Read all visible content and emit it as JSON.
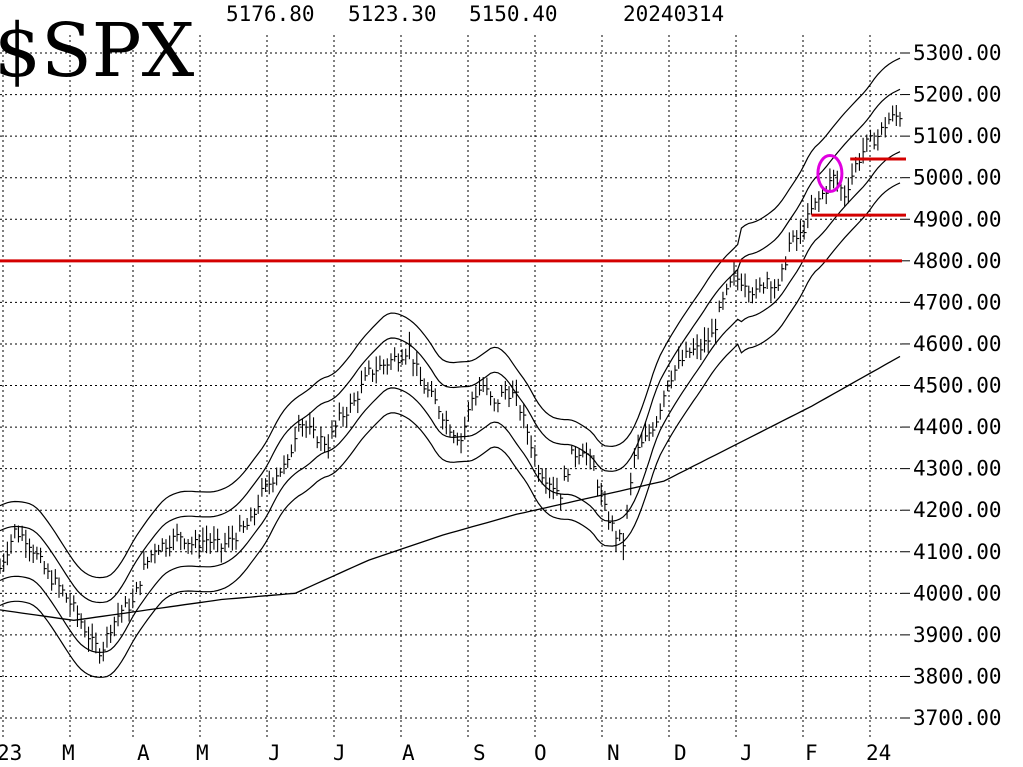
{
  "header": {
    "ticker": "$SPX",
    "high": "5176.80",
    "low": "5123.30",
    "close": "5150.40",
    "date": "20240314"
  },
  "chart_data": {
    "type": "ohlc-bar",
    "title": "$SPX",
    "ylim": [
      3650,
      5350
    ],
    "y_ticks": [
      "5300.00",
      "5200.00",
      "5100.00",
      "5000.00",
      "4900.00",
      "4800.00",
      "4700.00",
      "4600.00",
      "4500.00",
      "4400.00",
      "4300.00",
      "4200.00",
      "4100.00",
      "4000.00",
      "3900.00",
      "3800.00",
      "3700.00"
    ],
    "x_ticks": [
      "23",
      "M",
      "A",
      "M",
      "J",
      "J",
      "A",
      "S",
      "O",
      "N",
      "D",
      "J",
      "F",
      "24"
    ],
    "close_series": [
      {
        "d": 0,
        "v": 4060
      },
      {
        "d": 8,
        "v": 4150
      },
      {
        "d": 15,
        "v": 4130
      },
      {
        "d": 25,
        "v": 4050
      },
      {
        "d": 33,
        "v": 4010
      },
      {
        "d": 42,
        "v": 3950
      },
      {
        "d": 50,
        "v": 3880
      },
      {
        "d": 55,
        "v": 3860
      },
      {
        "d": 60,
        "v": 3920
      },
      {
        "d": 66,
        "v": 3960
      },
      {
        "d": 72,
        "v": 3975
      },
      {
        "d": 78,
        "v": 4060
      },
      {
        "d": 84,
        "v": 4110
      },
      {
        "d": 90,
        "v": 4120
      },
      {
        "d": 98,
        "v": 4140
      },
      {
        "d": 105,
        "v": 4115
      },
      {
        "d": 112,
        "v": 4130
      },
      {
        "d": 120,
        "v": 4110
      },
      {
        "d": 128,
        "v": 4140
      },
      {
        "d": 136,
        "v": 4170
      },
      {
        "d": 142,
        "v": 4240
      },
      {
        "d": 150,
        "v": 4290
      },
      {
        "d": 156,
        "v": 4310
      },
      {
        "d": 162,
        "v": 4420
      },
      {
        "d": 170,
        "v": 4380
      },
      {
        "d": 178,
        "v": 4360
      },
      {
        "d": 184,
        "v": 4420
      },
      {
        "d": 192,
        "v": 4460
      },
      {
        "d": 200,
        "v": 4530
      },
      {
        "d": 208,
        "v": 4550
      },
      {
        "d": 216,
        "v": 4570
      },
      {
        "d": 222,
        "v": 4590
      },
      {
        "d": 228,
        "v": 4510
      },
      {
        "d": 236,
        "v": 4460
      },
      {
        "d": 244,
        "v": 4400
      },
      {
        "d": 250,
        "v": 4370
      },
      {
        "d": 256,
        "v": 4470
      },
      {
        "d": 262,
        "v": 4500
      },
      {
        "d": 268,
        "v": 4450
      },
      {
        "d": 274,
        "v": 4490
      },
      {
        "d": 280,
        "v": 4470
      },
      {
        "d": 286,
        "v": 4390
      },
      {
        "d": 292,
        "v": 4300
      },
      {
        "d": 298,
        "v": 4270
      },
      {
        "d": 304,
        "v": 4240
      },
      {
        "d": 310,
        "v": 4330
      },
      {
        "d": 316,
        "v": 4350
      },
      {
        "d": 322,
        "v": 4300
      },
      {
        "d": 328,
        "v": 4200
      },
      {
        "d": 334,
        "v": 4140
      },
      {
        "d": 338,
        "v": 4120
      },
      {
        "d": 344,
        "v": 4330
      },
      {
        "d": 350,
        "v": 4370
      },
      {
        "d": 356,
        "v": 4420
      },
      {
        "d": 362,
        "v": 4510
      },
      {
        "d": 368,
        "v": 4550
      },
      {
        "d": 374,
        "v": 4580
      },
      {
        "d": 380,
        "v": 4590
      },
      {
        "d": 386,
        "v": 4620
      },
      {
        "d": 392,
        "v": 4700
      },
      {
        "d": 398,
        "v": 4760
      },
      {
        "d": 404,
        "v": 4750
      },
      {
        "d": 410,
        "v": 4720
      },
      {
        "d": 416,
        "v": 4760
      },
      {
        "d": 422,
        "v": 4730
      },
      {
        "d": 428,
        "v": 4840
      },
      {
        "d": 434,
        "v": 4860
      },
      {
        "d": 440,
        "v": 4920
      },
      {
        "d": 446,
        "v": 4960
      },
      {
        "d": 452,
        "v": 5000
      },
      {
        "d": 458,
        "v": 4960
      },
      {
        "d": 464,
        "v": 5030
      },
      {
        "d": 470,
        "v": 5080
      },
      {
        "d": 476,
        "v": 5100
      },
      {
        "d": 482,
        "v": 5140
      },
      {
        "d": 488,
        "v": 5150
      }
    ],
    "ma_200": [
      {
        "d": 0,
        "v": 3960
      },
      {
        "d": 40,
        "v": 3935
      },
      {
        "d": 80,
        "v": 3960
      },
      {
        "d": 120,
        "v": 3985
      },
      {
        "d": 160,
        "v": 4000
      },
      {
        "d": 200,
        "v": 4080
      },
      {
        "d": 240,
        "v": 4140
      },
      {
        "d": 280,
        "v": 4190
      },
      {
        "d": 320,
        "v": 4230
      },
      {
        "d": 360,
        "v": 4270
      },
      {
        "d": 400,
        "v": 4360
      },
      {
        "d": 440,
        "v": 4450
      },
      {
        "d": 488,
        "v": 4570
      }
    ],
    "bands": [
      {
        "name": "",
        "offset": 120
      },
      {
        "name": "",
        "offset": 60
      },
      {
        "name": "",
        "offset": -60
      },
      {
        "name": "",
        "offset": -120
      }
    ],
    "annotations": {
      "support_line": 4800,
      "short_lines": [
        {
          "from": 461,
          "to": 488,
          "v": 5045
        },
        {
          "from": 440,
          "to": 488,
          "v": 4910
        }
      ],
      "circle": {
        "d": 450,
        "v": 5010
      }
    }
  }
}
